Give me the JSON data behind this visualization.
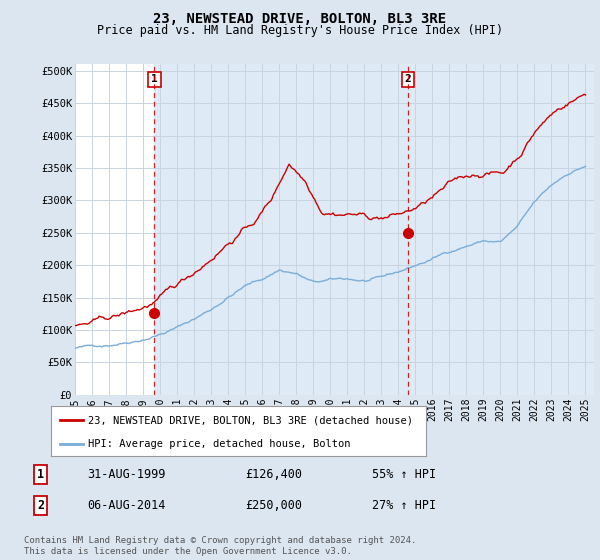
{
  "title": "23, NEWSTEAD DRIVE, BOLTON, BL3 3RE",
  "subtitle": "Price paid vs. HM Land Registry's House Price Index (HPI)",
  "ylabel_ticks": [
    "£0",
    "£50K",
    "£100K",
    "£150K",
    "£200K",
    "£250K",
    "£300K",
    "£350K",
    "£400K",
    "£450K",
    "£500K"
  ],
  "ytick_values": [
    0,
    50000,
    100000,
    150000,
    200000,
    250000,
    300000,
    350000,
    400000,
    450000,
    500000
  ],
  "ylim": [
    0,
    510000
  ],
  "xlim_start": 1995.3,
  "xlim_end": 2025.5,
  "xtick_years": [
    1995,
    1996,
    1997,
    1998,
    1999,
    2000,
    2001,
    2002,
    2003,
    2004,
    2005,
    2006,
    2007,
    2008,
    2009,
    2010,
    2011,
    2012,
    2013,
    2014,
    2015,
    2016,
    2017,
    2018,
    2019,
    2020,
    2021,
    2022,
    2023,
    2024,
    2025
  ],
  "sale1_x": 1999.667,
  "sale1_y": 126400,
  "sale1_label": "1",
  "sale1_date": "31-AUG-1999",
  "sale1_price": "£126,400",
  "sale1_hpi": "55% ↑ HPI",
  "sale2_x": 2014.583,
  "sale2_y": 250000,
  "sale2_label": "2",
  "sale2_date": "06-AUG-2014",
  "sale2_price": "£250,000",
  "sale2_hpi": "27% ↑ HPI",
  "vline1_x": 1999.667,
  "vline2_x": 2014.583,
  "red_color": "#cc0000",
  "blue_color": "#7aadda",
  "background_color": "#dce6f1",
  "plot_bg_color": "#ffffff",
  "shade_color": "#deeaf5",
  "grid_color": "#c8d4e0",
  "legend_line1": "23, NEWSTEAD DRIVE, BOLTON, BL3 3RE (detached house)",
  "legend_line2": "HPI: Average price, detached house, Bolton",
  "footer": "Contains HM Land Registry data © Crown copyright and database right 2024.\nThis data is licensed under the Open Government Licence v3.0.",
  "title_fontsize": 10,
  "subtitle_fontsize": 8.5
}
